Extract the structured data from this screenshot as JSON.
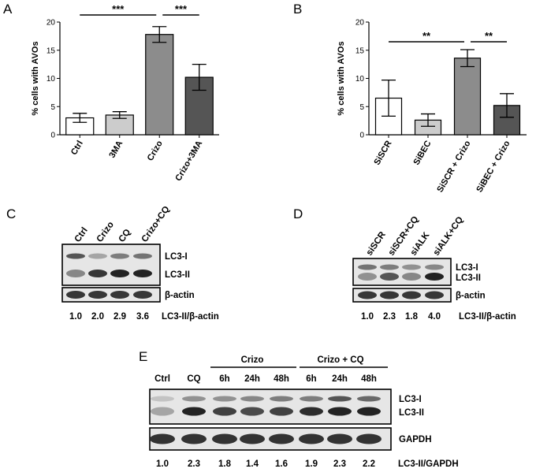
{
  "panels": {
    "A": {
      "letter": "A"
    },
    "B": {
      "letter": "B"
    },
    "C": {
      "letter": "C"
    },
    "D": {
      "letter": "D"
    },
    "E": {
      "letter": "E"
    }
  },
  "chart_data": [
    {
      "type": "bar",
      "panel": "A",
      "categories": [
        "Ctrl",
        "3MA",
        "Crizo",
        "Crizo+3MA"
      ],
      "values": [
        3.0,
        3.5,
        17.8,
        10.2
      ],
      "errors": [
        0.8,
        0.6,
        1.4,
        2.3
      ],
      "bar_colors": [
        "#ffffff",
        "#cccccc",
        "#8c8c8c",
        "#555555"
      ],
      "ylabel": "% cells with AVOs",
      "ylim": [
        0,
        20
      ],
      "yticks": [
        0,
        5,
        10,
        15,
        20
      ],
      "significance": [
        {
          "from": 0,
          "to": 2,
          "label": "***"
        },
        {
          "from": 2,
          "to": 3,
          "label": "***"
        }
      ]
    },
    {
      "type": "bar",
      "panel": "B",
      "categories": [
        "SiSCR",
        "SiBEC",
        "SiSCR + Crizo",
        "SiBEC + Crizo"
      ],
      "values": [
        6.5,
        2.6,
        13.6,
        5.2
      ],
      "errors": [
        3.2,
        1.1,
        1.5,
        2.1
      ],
      "bar_colors": [
        "#ffffff",
        "#cccccc",
        "#8c8c8c",
        "#555555"
      ],
      "ylabel": "% cells with AVOs",
      "ylim": [
        0,
        20
      ],
      "yticks": [
        0,
        5,
        10,
        15,
        20
      ],
      "significance": [
        {
          "from": 0,
          "to": 2,
          "label": "**"
        },
        {
          "from": 2,
          "to": 3,
          "label": "**"
        }
      ]
    }
  ],
  "blots": {
    "C": {
      "lanes": [
        "Ctrl",
        "Crizo",
        "CQ",
        "Crizo+CQ"
      ],
      "band_labels": [
        "LC3-I",
        "LC3-II",
        "β-actin"
      ],
      "quant": [
        "1.0",
        "2.0",
        "2.9",
        "3.6"
      ],
      "quant_label": "LC3-II/β-actin",
      "lc3i": [
        0.75,
        0.35,
        0.55,
        0.6
      ],
      "lc3ii": [
        0.5,
        0.9,
        1.0,
        1.0
      ]
    },
    "D": {
      "lanes": [
        "siSCR",
        "siSCR+CQ",
        "siALK",
        "siALK+CQ"
      ],
      "band_labels": [
        "LC3-I",
        "LC3-II",
        "β-actin"
      ],
      "quant": [
        "1.0",
        "2.3",
        "1.8",
        "4.0"
      ],
      "quant_label": "LC3-II/β-actin",
      "lc3i": [
        0.6,
        0.55,
        0.45,
        0.5
      ],
      "lc3ii": [
        0.45,
        0.75,
        0.5,
        1.0
      ]
    },
    "E": {
      "group_crizo": "Crizo",
      "group_crizo_cq": "Crizo + CQ",
      "lanes": [
        "Ctrl",
        "CQ",
        "6h",
        "24h",
        "48h",
        "6h",
        "24h",
        "48h"
      ],
      "band_labels": [
        "LC3-I",
        "LC3-II",
        "GAPDH"
      ],
      "quant": [
        "1.0",
        "2.3",
        "1.8",
        "1.4",
        "1.6",
        "1.9",
        "2.3",
        "2.2"
      ],
      "quant_label": "LC3-II/GAPDH",
      "lc3i": [
        0.2,
        0.45,
        0.45,
        0.5,
        0.55,
        0.55,
        0.75,
        0.65
      ],
      "lc3ii": [
        0.35,
        1.0,
        0.85,
        0.8,
        0.85,
        0.95,
        1.0,
        1.0
      ]
    }
  }
}
